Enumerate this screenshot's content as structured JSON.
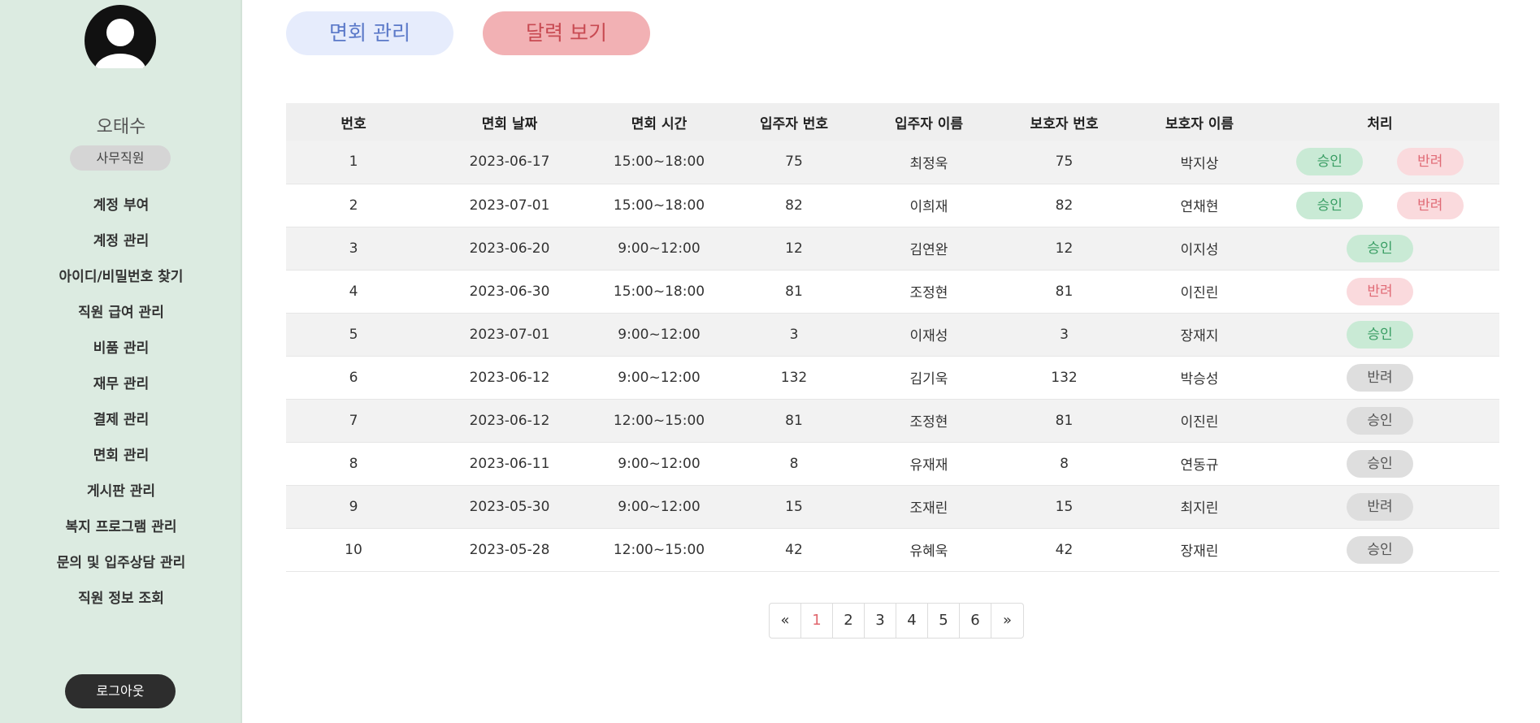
{
  "sidebar": {
    "user_name": "오태수",
    "role": "사무직원",
    "menu": [
      "계정 부여",
      "계정 관리",
      "아이디/비밀번호 찾기",
      "직원 급여 관리",
      "비품 관리",
      "재무 관리",
      "결제 관리",
      "면회 관리",
      "게시판 관리",
      "복지 프로그램 관리",
      "문의 및 입주상담 관리",
      "직원 정보 조회"
    ],
    "logout": "로그아웃"
  },
  "tabs": {
    "visit_management": "면회 관리",
    "calendar_view": "달력 보기"
  },
  "table": {
    "headers": [
      "번호",
      "면회 날짜",
      "면회 시간",
      "입주자 번호",
      "입주자 이름",
      "보호자 번호",
      "보호자 이름",
      "처리"
    ],
    "rows": [
      {
        "no": "1",
        "date": "2023-06-17",
        "time": "15:00~18:00",
        "resident_no": "75",
        "resident_name": "최정욱",
        "guardian_no": "75",
        "guardian_name": "박지상",
        "approve": "승인",
        "reject": "반려"
      },
      {
        "no": "2",
        "date": "2023-07-01",
        "time": "15:00~18:00",
        "resident_no": "82",
        "resident_name": "이희재",
        "guardian_no": "82",
        "guardian_name": "연채현",
        "approve": "승인",
        "reject": "반려"
      },
      {
        "no": "3",
        "date": "2023-06-20",
        "time": "9:00~12:00",
        "resident_no": "12",
        "resident_name": "김연완",
        "guardian_no": "12",
        "guardian_name": "이지성",
        "status": "승인"
      },
      {
        "no": "4",
        "date": "2023-06-30",
        "time": "15:00~18:00",
        "resident_no": "81",
        "resident_name": "조정현",
        "guardian_no": "81",
        "guardian_name": "이진린",
        "status": "반려"
      },
      {
        "no": "5",
        "date": "2023-07-01",
        "time": "9:00~12:00",
        "resident_no": "3",
        "resident_name": "이재성",
        "guardian_no": "3",
        "guardian_name": "장재지",
        "status": "승인"
      },
      {
        "no": "6",
        "date": "2023-06-12",
        "time": "9:00~12:00",
        "resident_no": "132",
        "resident_name": "김기욱",
        "guardian_no": "132",
        "guardian_name": "박승성",
        "status": "반려"
      },
      {
        "no": "7",
        "date": "2023-06-12",
        "time": "12:00~15:00",
        "resident_no": "81",
        "resident_name": "조정현",
        "guardian_no": "81",
        "guardian_name": "이진린",
        "status": "승인"
      },
      {
        "no": "8",
        "date": "2023-06-11",
        "time": "9:00~12:00",
        "resident_no": "8",
        "resident_name": "유재재",
        "guardian_no": "8",
        "guardian_name": "연동규",
        "status": "승인"
      },
      {
        "no": "9",
        "date": "2023-05-30",
        "time": "9:00~12:00",
        "resident_no": "15",
        "resident_name": "조재린",
        "guardian_no": "15",
        "guardian_name": "최지린",
        "status": "반려"
      },
      {
        "no": "10",
        "date": "2023-05-28",
        "time": "12:00~15:00",
        "resident_no": "42",
        "resident_name": "유혜욱",
        "guardian_no": "42",
        "guardian_name": "장재린",
        "status": "승인"
      }
    ]
  },
  "pagination": {
    "prev": "«",
    "pages": [
      "1",
      "2",
      "3",
      "4",
      "5",
      "6"
    ],
    "next": "»",
    "current": "1"
  },
  "colors": {
    "sidebar_bg": "#dcebe1",
    "approve_green": "#3a9e64",
    "reject_red": "#e06a75",
    "processed_gray": "#555555",
    "tab_blue_bg": "#e6ecfc",
    "tab_red_bg": "#f2b1b4"
  }
}
